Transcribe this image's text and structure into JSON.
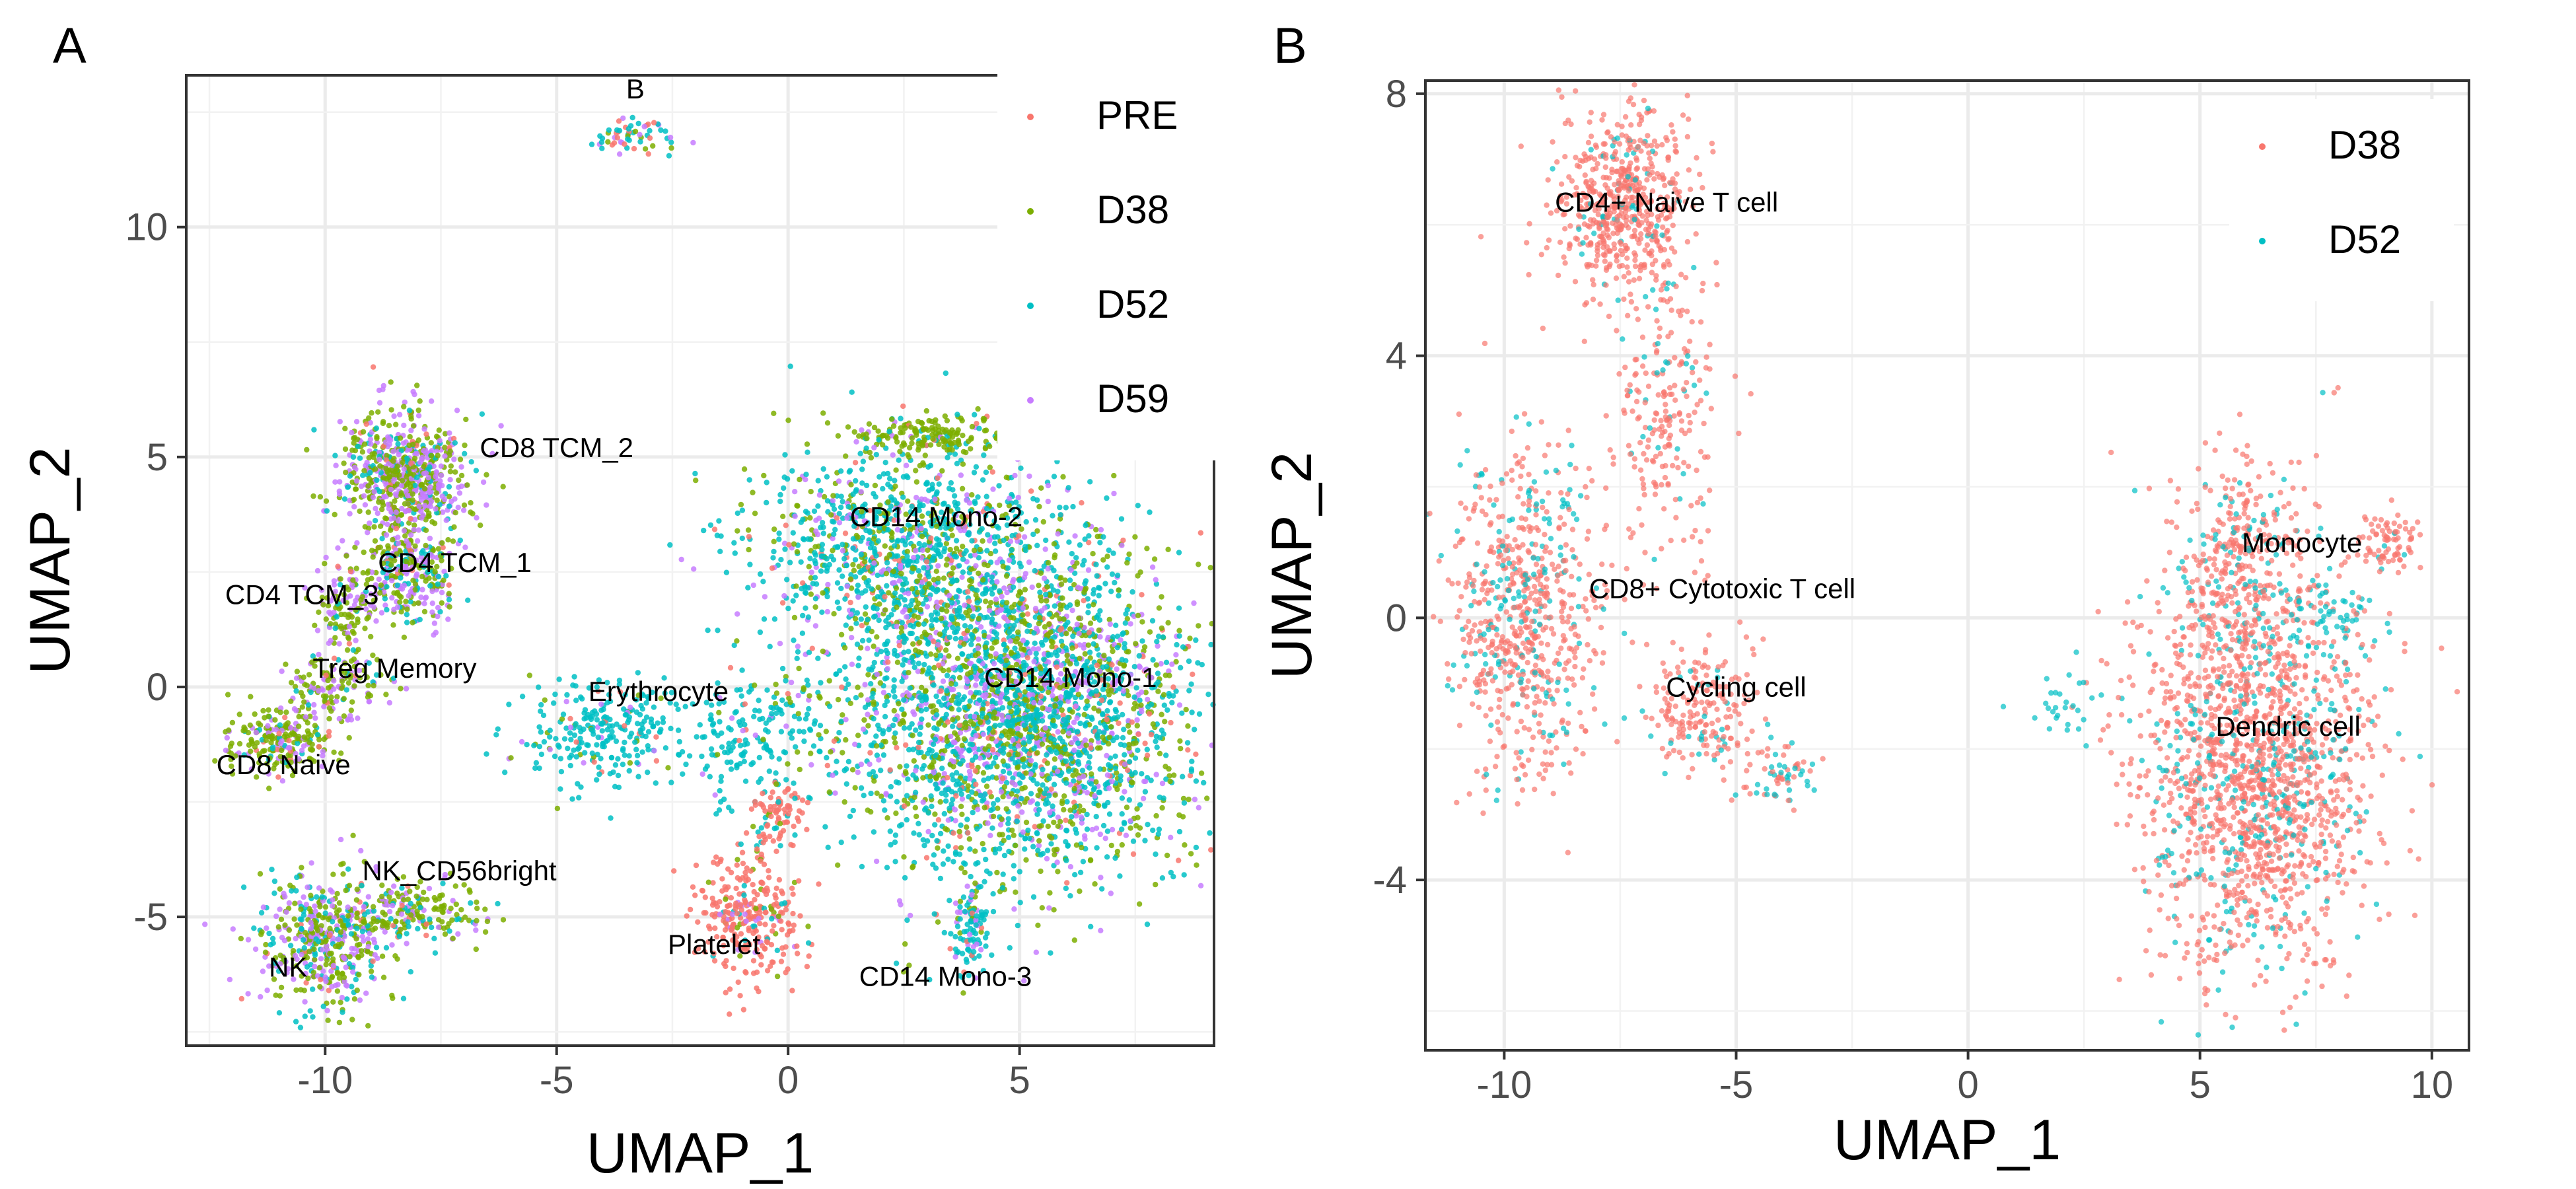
{
  "chart_data": [
    {
      "panel": "A",
      "type": "scatter",
      "xlabel": "UMAP_1",
      "ylabel": "UMAP_2",
      "xlim": [
        -13,
        9.2
      ],
      "ylim": [
        -7.8,
        13.3
      ],
      "x_ticks": [
        -10,
        -5,
        0,
        5
      ],
      "x_tick_labels": [
        "-10",
        "-5",
        "0",
        "5"
      ],
      "y_ticks": [
        -5,
        0,
        5,
        10
      ],
      "y_tick_labels": [
        "-5",
        "0",
        "5",
        "10"
      ],
      "grid": true,
      "legend_position": "top-right",
      "series": [
        {
          "name": "PRE",
          "color": "#F8766D"
        },
        {
          "name": "D38",
          "color": "#7CAE00"
        },
        {
          "name": "D52",
          "color": "#00BFC4"
        },
        {
          "name": "D59",
          "color": "#C77CFF"
        }
      ],
      "clusters": [
        {
          "label": "B",
          "x": -3.3,
          "y": 12.0,
          "sx": 0.5,
          "sy": 0.25,
          "n": 60,
          "w": [
            0.3,
            0.1,
            0.4,
            0.2
          ],
          "lx": -3.3,
          "ly": 12.8
        },
        {
          "label": "CD8 TCM_2",
          "x": -8.3,
          "y": 4.6,
          "sx": 0.75,
          "sy": 0.75,
          "n": 700,
          "w": [
            0.05,
            0.45,
            0.1,
            0.4
          ],
          "lx": -5.0,
          "ly": 5.0
        },
        {
          "label": "CD4 TCM_1",
          "x": -8.2,
          "y": 2.5,
          "sx": 0.6,
          "sy": 0.6,
          "n": 300,
          "w": [
            0.05,
            0.35,
            0.2,
            0.4
          ],
          "lx": -7.2,
          "ly": 2.5
        },
        {
          "label": "CD4 TCM_3",
          "x": -9.6,
          "y": 1.6,
          "sx": 0.4,
          "sy": 0.6,
          "n": 120,
          "w": [
            0.05,
            0.5,
            0.1,
            0.35
          ],
          "lx": -10.5,
          "ly": 1.8
        },
        {
          "label": "Treg Memory",
          "x": -9.8,
          "y": 0.0,
          "sx": 0.6,
          "sy": 0.5,
          "n": 150,
          "w": [
            0.05,
            0.55,
            0.1,
            0.3
          ],
          "lx": -8.5,
          "ly": 0.2
        },
        {
          "label": "CD8 Naive",
          "x": -11.0,
          "y": -1.2,
          "sx": 0.6,
          "sy": 0.4,
          "n": 220,
          "w": [
            0.05,
            0.65,
            0.1,
            0.2
          ],
          "lx": -10.9,
          "ly": -1.9
        },
        {
          "label": "NK",
          "x": -10.0,
          "y": -5.5,
          "sx": 0.9,
          "sy": 0.8,
          "n": 500,
          "w": [
            0.05,
            0.45,
            0.2,
            0.3
          ],
          "lx": -10.8,
          "ly": -6.3
        },
        {
          "label": "NK_CD56bright",
          "x": -8.0,
          "y": -4.9,
          "sx": 0.8,
          "sy": 0.4,
          "n": 180,
          "w": [
            0.05,
            0.6,
            0.15,
            0.2
          ],
          "lx": -7.1,
          "ly": -4.2
        },
        {
          "label": "Erythrocyte",
          "x": -4.0,
          "y": -1.0,
          "sx": 0.9,
          "sy": 0.6,
          "n": 260,
          "w": [
            0.05,
            0.05,
            0.85,
            0.05
          ],
          "lx": -2.8,
          "ly": -0.3
        },
        {
          "label": "",
          "x": -0.8,
          "y": -1.2,
          "sx": 0.9,
          "sy": 0.9,
          "n": 200,
          "w": [
            0.03,
            0.05,
            0.87,
            0.05
          ]
        },
        {
          "label": "CD14 Mono-2",
          "x": 2.5,
          "y": 3.0,
          "sx": 1.8,
          "sy": 1.3,
          "n": 1100,
          "w": [
            0.05,
            0.25,
            0.55,
            0.15
          ],
          "lx": 3.2,
          "ly": 3.5
        },
        {
          "label": "",
          "x": 3.0,
          "y": 5.5,
          "sx": 1.0,
          "sy": 0.25,
          "n": 160,
          "w": [
            0.02,
            0.9,
            0.06,
            0.02
          ]
        },
        {
          "label": "CD14 Mono-1",
          "x": 5.0,
          "y": -0.5,
          "sx": 2.2,
          "sy": 2.0,
          "n": 3000,
          "w": [
            0.05,
            0.3,
            0.45,
            0.2
          ],
          "lx": 6.1,
          "ly": 0.0
        },
        {
          "label": "CD14 Mono-3",
          "x": 4.0,
          "y": -5.2,
          "sx": 0.25,
          "sy": 0.6,
          "n": 100,
          "w": [
            0.05,
            0.1,
            0.75,
            0.1
          ],
          "lx": 3.4,
          "ly": -6.5
        },
        {
          "label": "Platelet",
          "x": -0.8,
          "y": -5.0,
          "sx": 0.6,
          "sy": 0.8,
          "n": 300,
          "w": [
            0.85,
            0.05,
            0.05,
            0.05
          ],
          "lx": -1.6,
          "ly": -5.8
        },
        {
          "label": "",
          "x": -0.2,
          "y": -2.8,
          "sx": 0.3,
          "sy": 0.4,
          "n": 70,
          "w": [
            0.9,
            0.03,
            0.04,
            0.03
          ]
        }
      ]
    },
    {
      "panel": "B",
      "type": "scatter",
      "xlabel": "UMAP_1",
      "ylabel": "UMAP_2",
      "xlim": [
        -11.7,
        10.8
      ],
      "ylim": [
        -6.6,
        8.2
      ],
      "x_ticks": [
        -10,
        -5,
        0,
        5,
        10
      ],
      "x_tick_labels": [
        "-10",
        "-5",
        "0",
        "5",
        "10"
      ],
      "y_ticks": [
        -4,
        0,
        4,
        8
      ],
      "y_tick_labels": [
        "-4",
        "0",
        "4",
        "8"
      ],
      "grid": true,
      "legend_position": "top-right",
      "series": [
        {
          "name": "D38",
          "color": "#F8766D"
        },
        {
          "name": "D52",
          "color": "#00BFC4"
        }
      ],
      "clusters": [
        {
          "label": "CD4+ Naive T cell",
          "x": -7.5,
          "y": 6.3,
          "sx": 0.8,
          "sy": 0.8,
          "n": 600,
          "w": [
            0.93,
            0.07
          ],
          "lx": -6.5,
          "ly": 6.2
        },
        {
          "label": "",
          "x": -6.5,
          "y": 3.0,
          "sx": 0.6,
          "sy": 1.2,
          "n": 220,
          "w": [
            0.85,
            0.15
          ]
        },
        {
          "label": "CD8+ Cytotoxic T cell",
          "x": -9.6,
          "y": 0.0,
          "sx": 0.9,
          "sy": 1.5,
          "n": 700,
          "w": [
            0.75,
            0.25
          ],
          "lx": -5.3,
          "ly": 0.3
        },
        {
          "label": "Cycling cell",
          "x": -5.7,
          "y": -1.4,
          "sx": 0.7,
          "sy": 0.6,
          "n": 200,
          "w": [
            0.9,
            0.1
          ],
          "lx": -5.0,
          "ly": -1.2
        },
        {
          "label": "",
          "x": -4.0,
          "y": -2.4,
          "sx": 0.5,
          "sy": 0.3,
          "n": 60,
          "w": [
            0.4,
            0.6
          ]
        },
        {
          "label": "",
          "x": 2.1,
          "y": -1.3,
          "sx": 0.5,
          "sy": 0.3,
          "n": 30,
          "w": [
            0.1,
            0.9
          ]
        },
        {
          "label": "Dendric cell",
          "x": 6.2,
          "y": -2.2,
          "sx": 1.4,
          "sy": 1.8,
          "n": 1800,
          "w": [
            0.8,
            0.2
          ],
          "lx": 6.9,
          "ly": -1.8
        },
        {
          "label": "Monocyte",
          "x": 5.8,
          "y": 1.0,
          "sx": 0.7,
          "sy": 0.8,
          "n": 250,
          "w": [
            0.8,
            0.2
          ],
          "lx": 7.2,
          "ly": 1.0
        },
        {
          "label": "",
          "x": 9.0,
          "y": 1.1,
          "sx": 0.4,
          "sy": 0.3,
          "n": 80,
          "w": [
            0.95,
            0.05
          ]
        },
        {
          "label": "",
          "x": 8.0,
          "y": 0.1,
          "sx": 0.5,
          "sy": 0.3,
          "n": 50,
          "w": [
            0.2,
            0.8
          ]
        }
      ]
    }
  ],
  "panels": [
    {
      "letter": "A"
    },
    {
      "letter": "B"
    }
  ]
}
